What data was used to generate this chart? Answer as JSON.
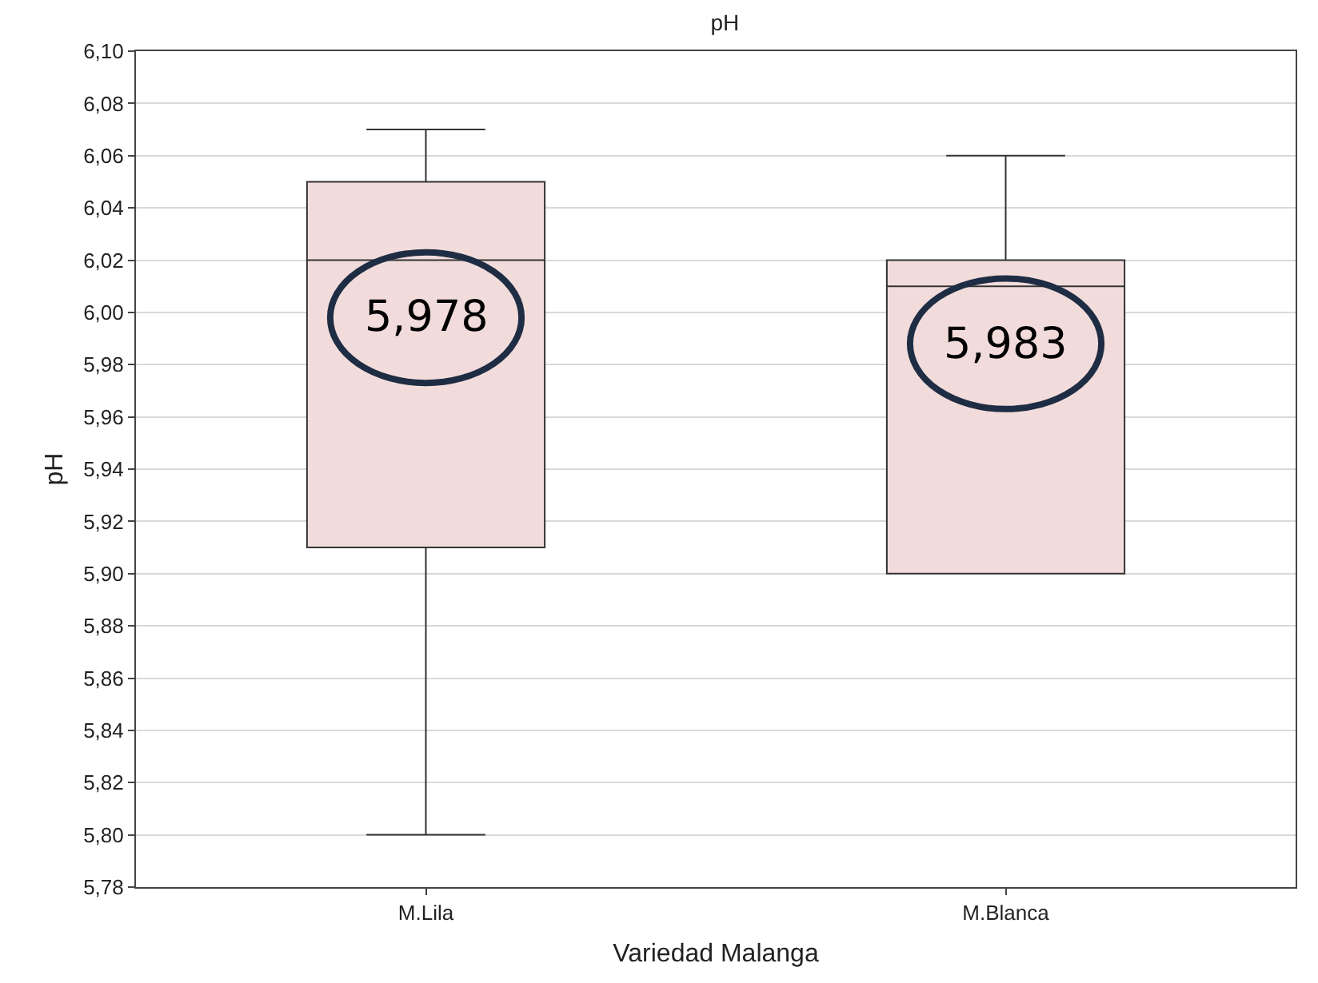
{
  "chart_data": {
    "type": "box",
    "title": "pH",
    "xlabel": "Variedad Malanga",
    "ylabel": "pH",
    "categories": [
      "M.Lila",
      "M.Blanca"
    ],
    "series": [
      {
        "color": "#f2dcdb",
        "boxes": [
          {
            "low": 5.8,
            "q1": 5.91,
            "median": 6.02,
            "q3": 6.05,
            "high": 6.07
          },
          {
            "low": 5.9,
            "q1": 5.9,
            "median": 6.01,
            "q3": 6.02,
            "high": 6.06
          }
        ]
      }
    ],
    "ylim": [
      5.78,
      6.1
    ],
    "yticks": [
      {
        "value": 5.78,
        "label": "5,78"
      },
      {
        "value": 5.8,
        "label": "5,80"
      },
      {
        "value": 5.82,
        "label": "5,82"
      },
      {
        "value": 5.84,
        "label": "5,84"
      },
      {
        "value": 5.86,
        "label": "5,86"
      },
      {
        "value": 5.88,
        "label": "5,88"
      },
      {
        "value": 5.9,
        "label": "5,90"
      },
      {
        "value": 5.92,
        "label": "5,92"
      },
      {
        "value": 5.94,
        "label": "5,94"
      },
      {
        "value": 5.96,
        "label": "5,96"
      },
      {
        "value": 5.98,
        "label": "5,98"
      },
      {
        "value": 6.0,
        "label": "6,00"
      },
      {
        "value": 6.02,
        "label": "6,02"
      },
      {
        "value": 6.04,
        "label": "6,04"
      },
      {
        "value": 6.06,
        "label": "6,06"
      },
      {
        "value": 6.08,
        "label": "6,08"
      },
      {
        "value": 6.1,
        "label": "6,10"
      }
    ],
    "annotations": [
      "5,978",
      "5,983"
    ],
    "grid": "y"
  }
}
